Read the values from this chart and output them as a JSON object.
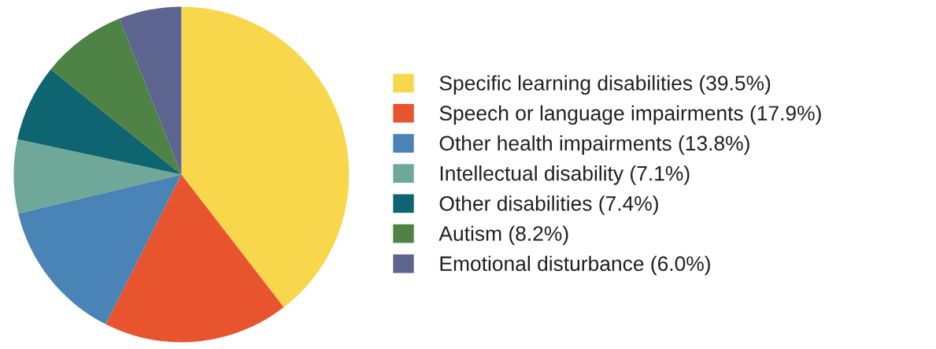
{
  "chart_data": {
    "type": "pie",
    "categories": [
      "Specific learning disabilities (39.5%)",
      "Speech or language impairments (17.9%)",
      "Other health impairments (13.8%)",
      "Intellectual disability (7.1%)",
      "Other disabilities (7.4%)",
      "Autism (8.2%)",
      "Emotional disturbance (6.0%)"
    ],
    "values": [
      39.5,
      17.9,
      13.8,
      7.1,
      7.4,
      8.2,
      6.0
    ],
    "colors": [
      "#f9d74c",
      "#e8542e",
      "#4a83b5",
      "#6fa898",
      "#0e6470",
      "#4f8245",
      "#5e6490"
    ],
    "legend": "right"
  }
}
